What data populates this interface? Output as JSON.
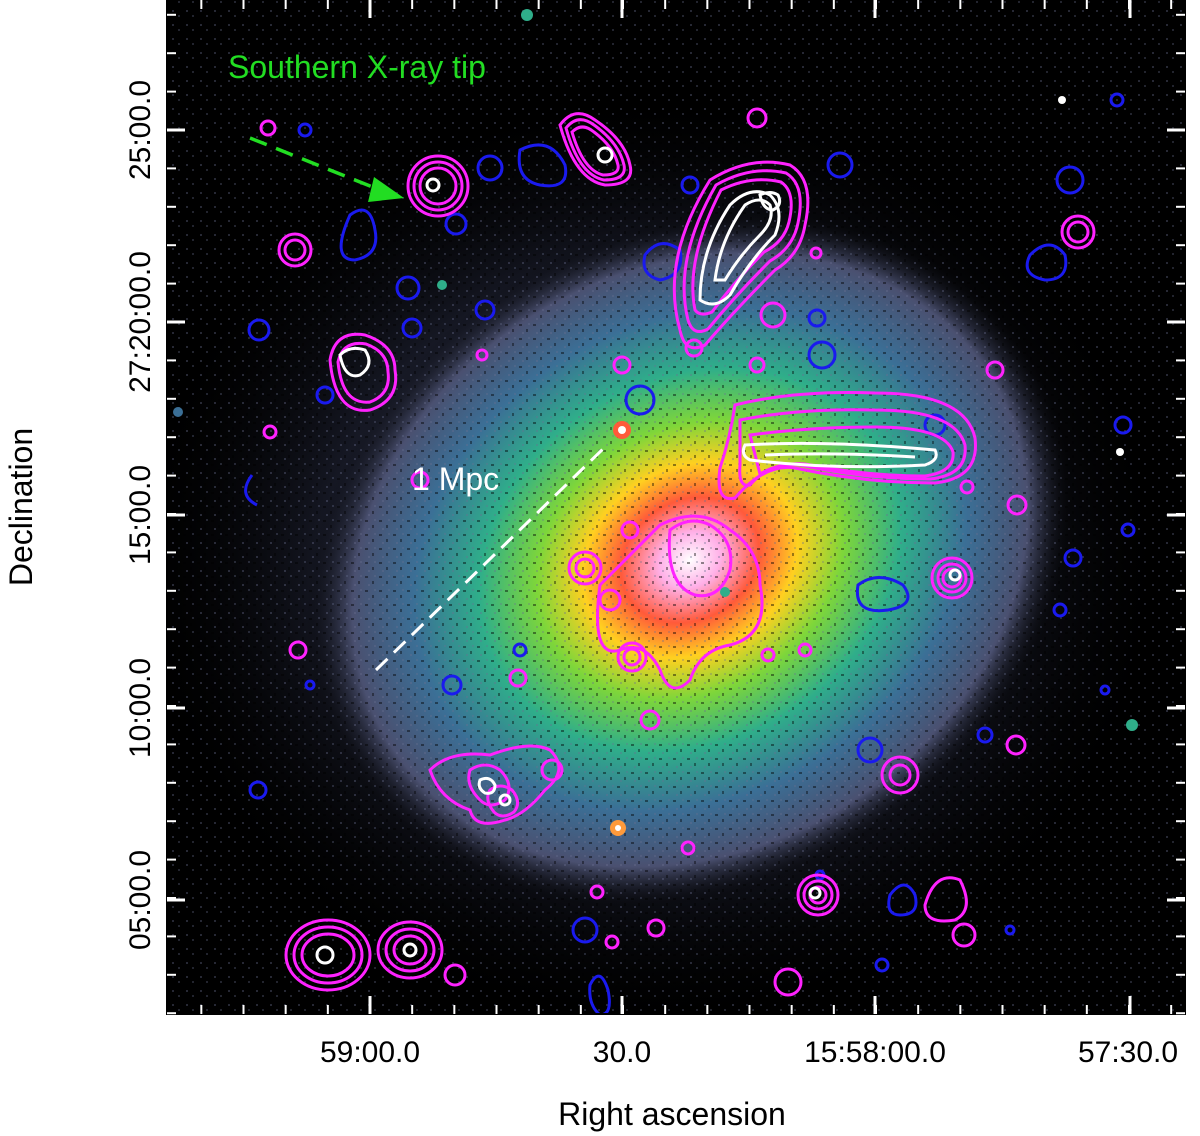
{
  "figure": {
    "xlabel": "Right ascension",
    "ylabel": "Declination",
    "x_tick_labels": [
      "59:00.0",
      "30.0",
      "15:58:00.0",
      "57:30.0"
    ],
    "y_tick_labels": [
      "05:00.0",
      "10:00.0",
      "15:00.0",
      "27:20:00.0",
      "25:00.0"
    ],
    "y_mid_labels": [
      "27:15:00.0",
      "27:20:00.0",
      "27:25:00.0"
    ],
    "annotations": {
      "southern_tip": "Southern X-ray tip",
      "scale_bar": "1 Mpc"
    },
    "colors": {
      "annotation_green": "#22dd22",
      "contour_magenta": "#ff22ff",
      "contour_blue": "#1a1aee",
      "contour_white": "#ffffff",
      "background": "#000000"
    }
  }
}
